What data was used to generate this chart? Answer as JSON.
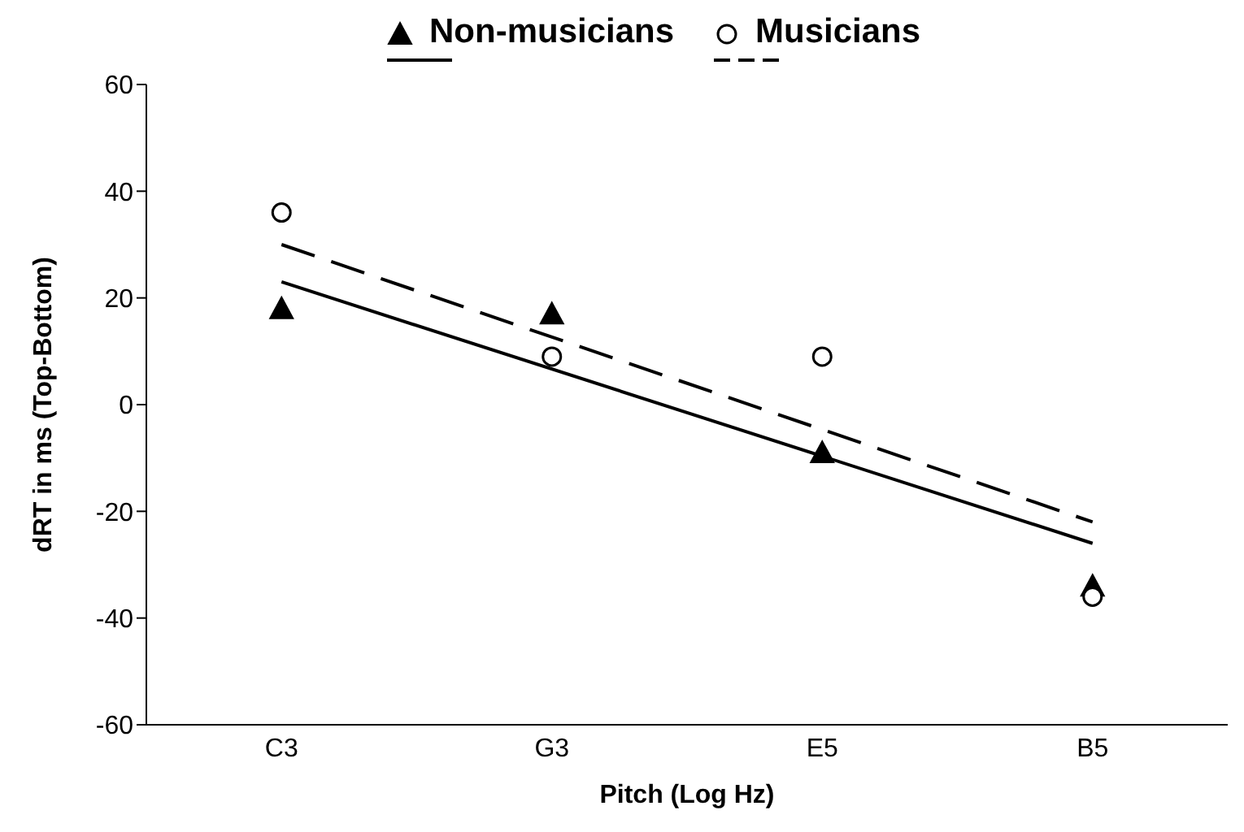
{
  "chart_data": {
    "type": "scatter",
    "xlabel": "Pitch (Log Hz)",
    "ylabel": "dRT in ms (Top-Bottom)",
    "categories": [
      "C3",
      "G3",
      "E5",
      "B5"
    ],
    "ylim": [
      -60,
      60
    ],
    "yticks": [
      -60,
      -40,
      -20,
      0,
      20,
      40,
      60
    ],
    "legend": "top",
    "series": [
      {
        "name": "Non-musicians",
        "type": "scatter",
        "marker": "triangle",
        "color": "#000000",
        "values": [
          18,
          17,
          -9,
          -34
        ]
      },
      {
        "name": "Musicians",
        "type": "scatter",
        "marker": "circle",
        "color": "#000000",
        "values": [
          36,
          9,
          9,
          -36
        ]
      },
      {
        "type": "line",
        "x": [
          "C3",
          "B5"
        ],
        "values": [
          23,
          -26
        ],
        "line_style": "solid",
        "marker": "none",
        "color": "#000000"
      },
      {
        "type": "line",
        "x": [
          "C3",
          "B5"
        ],
        "values": [
          30,
          -22
        ],
        "line_style": "dashed",
        "marker": "none",
        "color": "#000000"
      }
    ]
  }
}
